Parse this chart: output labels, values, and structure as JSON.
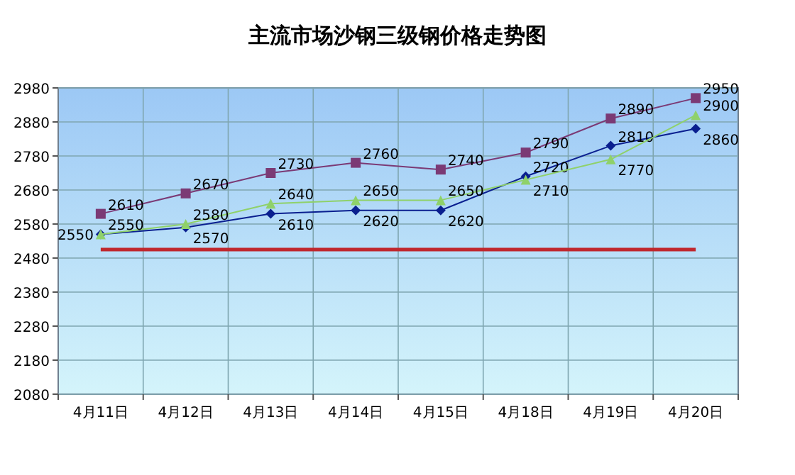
{
  "chart_data": {
    "type": "line",
    "title": "主流市场沙钢三级钢价格走势图",
    "categories": [
      "4月11日",
      "4月12日",
      "4月13日",
      "4月14日",
      "4月15日",
      "4月18日",
      "4月19日",
      "4月20日"
    ],
    "series": [
      {
        "color": "#0a1f8f",
        "marker": "diamond",
        "values": [
          2550,
          2570,
          2610,
          2620,
          2620,
          2720,
          2810,
          2860
        ],
        "value_labels": [
          "2550",
          "2570",
          "2610",
          "2620",
          "2620",
          "2720",
          "2810",
          "2860"
        ]
      },
      {
        "color": "#7b3a75",
        "marker": "square",
        "values": [
          2610,
          2670,
          2730,
          2760,
          2740,
          2790,
          2890,
          2950
        ],
        "value_labels": [
          "2610",
          "2670",
          "2730",
          "2760",
          "2740",
          "2790",
          "2890",
          "2950"
        ]
      },
      {
        "color": "#8fd16a",
        "marker": "triangle",
        "values": [
          2550,
          2580,
          2640,
          2650,
          2650,
          2710,
          2770,
          2900
        ],
        "value_labels": [
          "2550",
          "2580",
          "2640",
          "2650",
          "2650",
          "2710",
          "2770",
          "2900"
        ]
      },
      {
        "color": "#c0272d",
        "marker": "none",
        "values": [
          2505,
          2505,
          2505,
          2505,
          2505,
          2505,
          2505,
          2505
        ]
      }
    ],
    "ylim": [
      2080,
      2980
    ],
    "yticks": [
      2080,
      2180,
      2280,
      2380,
      2480,
      2580,
      2680,
      2780,
      2880,
      2980
    ],
    "grid": true
  }
}
